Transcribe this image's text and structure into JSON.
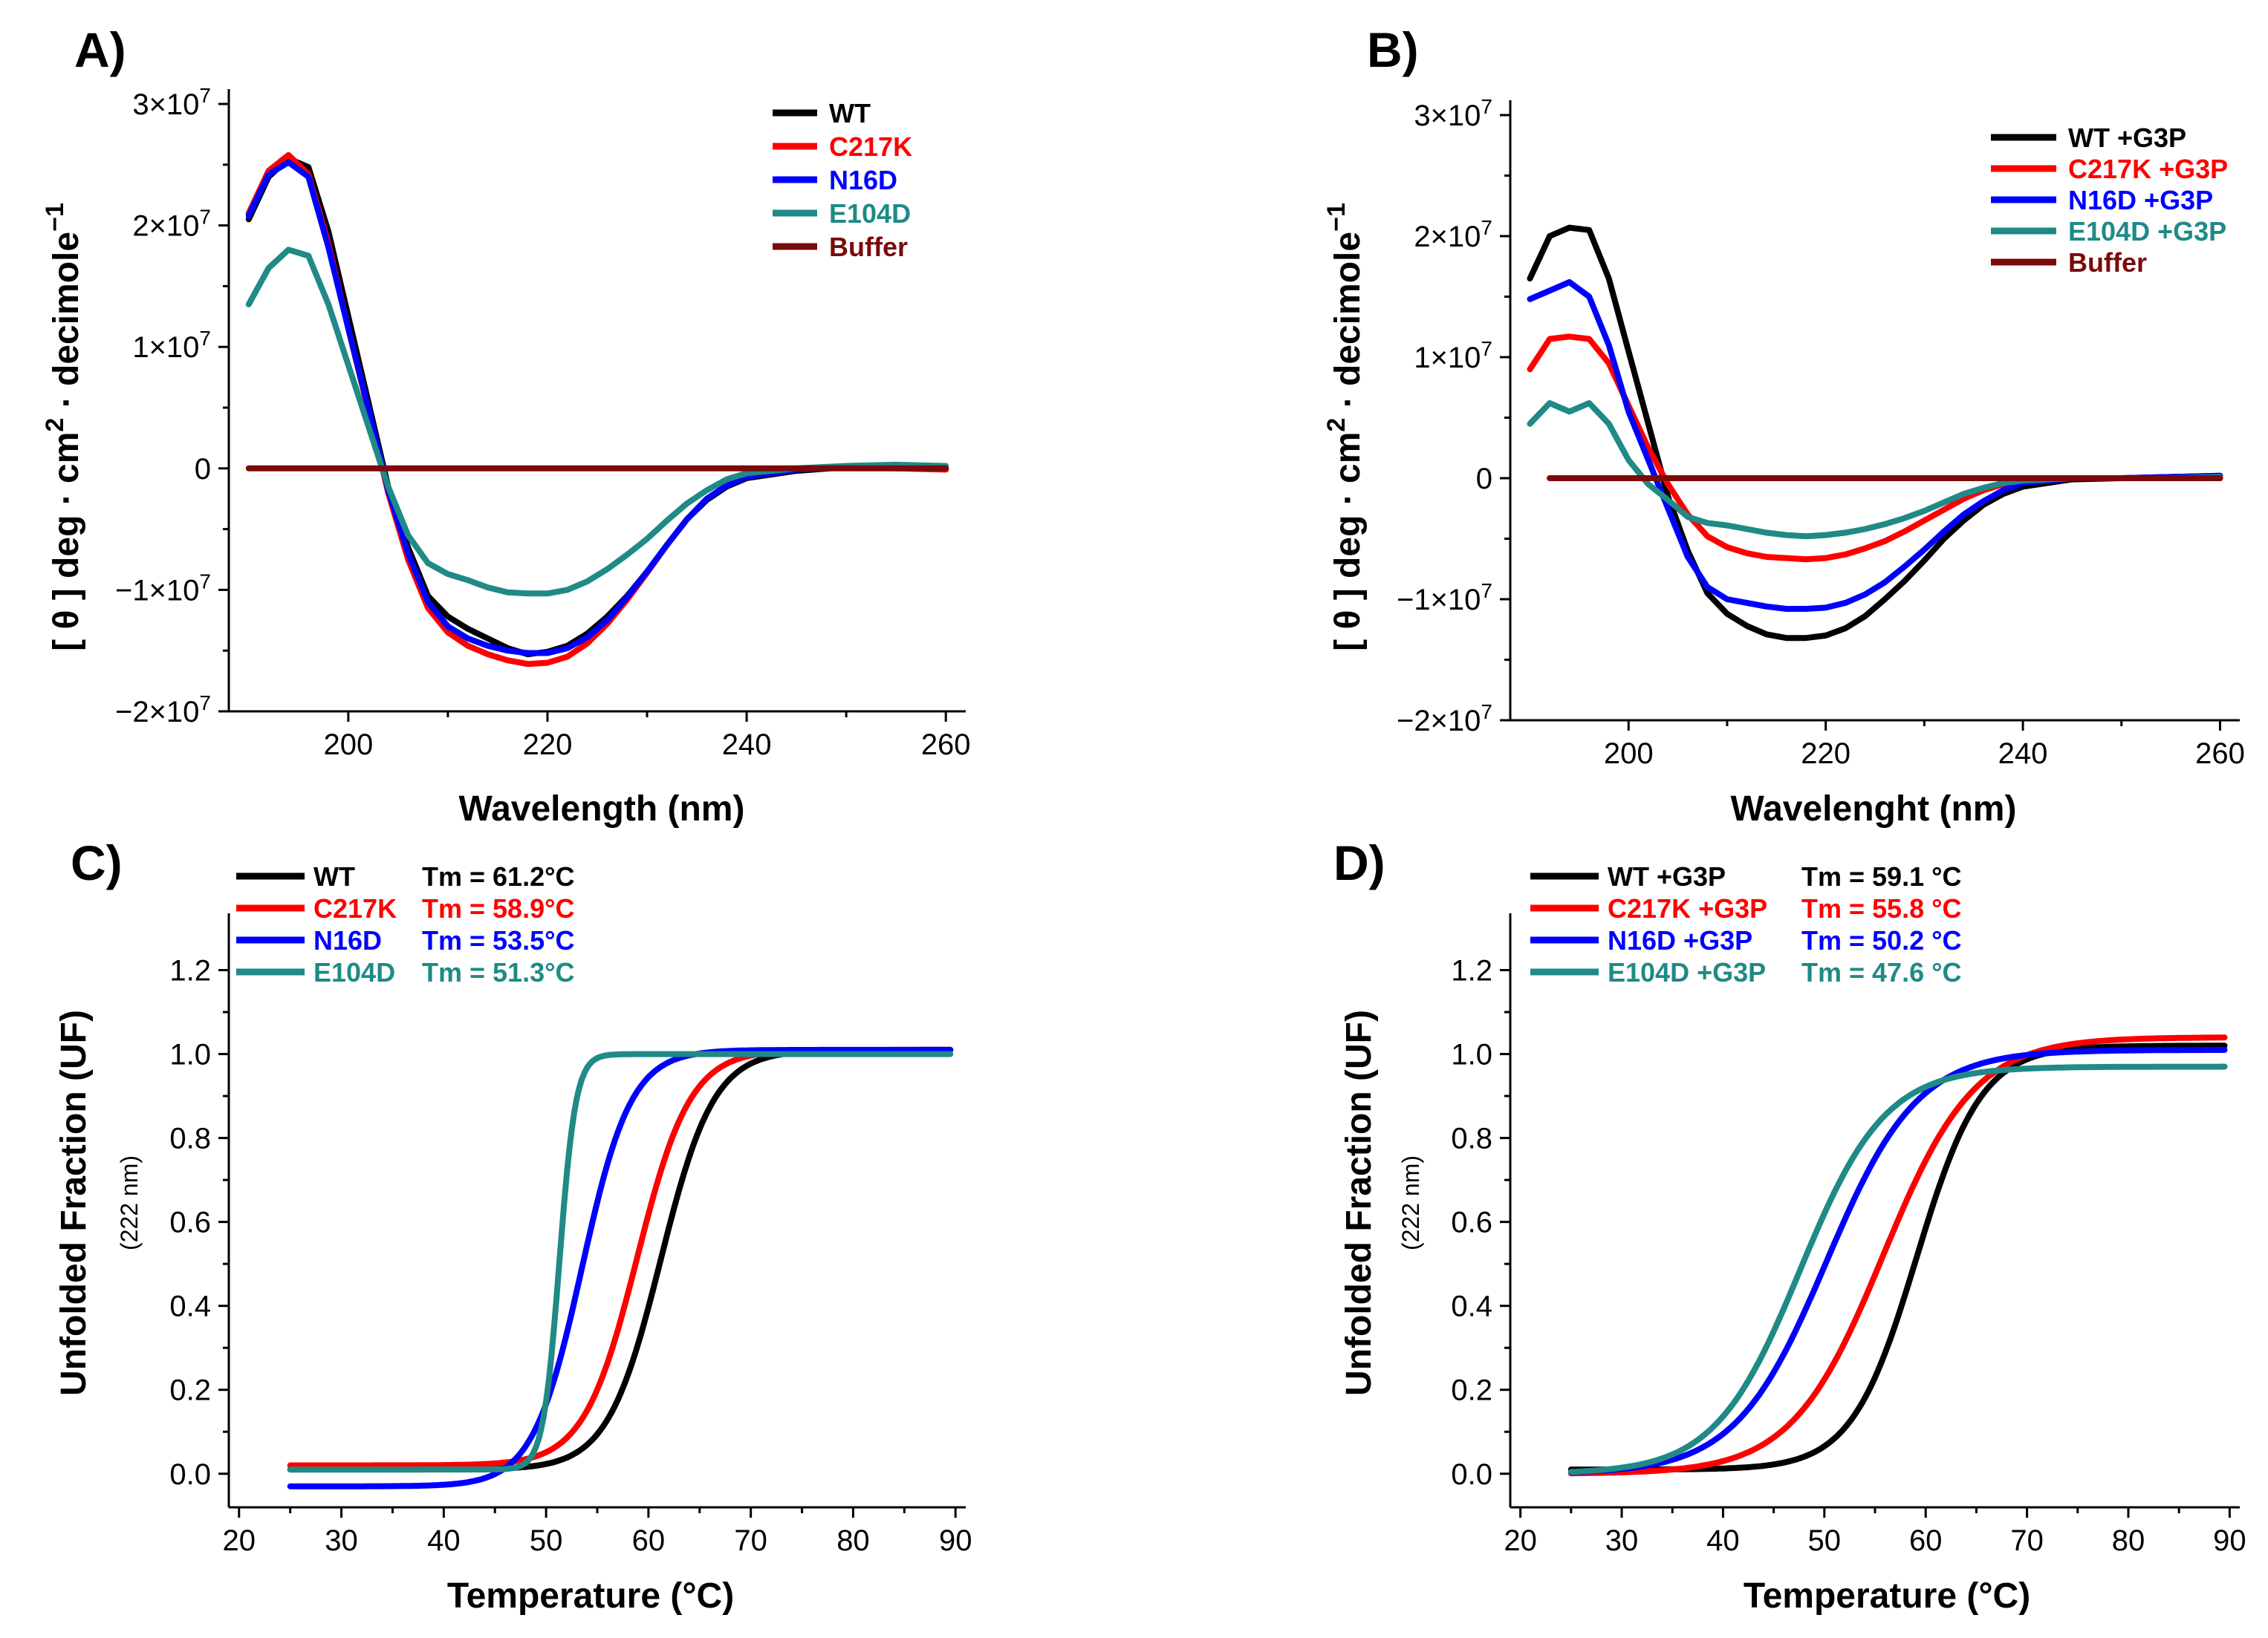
{
  "chart_data": [
    {
      "panel": "A)",
      "type": "line",
      "xlabel": "Wavelength (nm)",
      "ylabel": "[ θ ] deg · cm2 · decimole−1",
      "xlim": [
        188,
        262
      ],
      "ylim": [
        -20000000,
        30000000
      ],
      "xticks": [
        200,
        220,
        240,
        260
      ],
      "xtick_labels": [
        "200",
        "220",
        "240",
        "260"
      ],
      "yticks": [
        -20000000,
        -10000000,
        0,
        10000000,
        20000000,
        30000000
      ],
      "ytick_labels": [
        "−2×107",
        "−1×107",
        "0",
        "1×107",
        "2×107",
        "3×107"
      ],
      "legend_position": "top-right",
      "series": [
        {
          "name": "WT",
          "color": "#000000",
          "x": [
            190,
            192,
            194,
            196,
            198,
            200,
            202,
            204,
            206,
            208,
            210,
            212,
            214,
            216,
            218,
            220,
            222,
            224,
            226,
            228,
            230,
            232,
            234,
            236,
            238,
            240,
            245,
            250,
            255,
            260
          ],
          "y": [
            20500000,
            24000000,
            25500000,
            24800000,
            19500000,
            12500000,
            5500000,
            -1500000,
            -6500000,
            -10500000,
            -12200000,
            -13200000,
            -14000000,
            -14800000,
            -15300000,
            -15100000,
            -14600000,
            -13600000,
            -12200000,
            -10500000,
            -8500000,
            -6300000,
            -4200000,
            -2600000,
            -1500000,
            -800000,
            -200000,
            100000,
            200000,
            0
          ]
        },
        {
          "name": "C217K",
          "color": "#ff0000",
          "x": [
            190,
            192,
            194,
            196,
            198,
            200,
            202,
            204,
            206,
            208,
            210,
            212,
            214,
            216,
            218,
            220,
            222,
            224,
            226,
            228,
            230,
            232,
            234,
            236,
            238,
            240,
            245,
            250,
            255,
            260
          ],
          "y": [
            21000000,
            24500000,
            25800000,
            24200000,
            18500000,
            11500000,
            4800000,
            -2000000,
            -7500000,
            -11500000,
            -13500000,
            -14600000,
            -15300000,
            -15800000,
            -16100000,
            -16000000,
            -15500000,
            -14400000,
            -12800000,
            -10800000,
            -8600000,
            -6300000,
            -4200000,
            -2500000,
            -1400000,
            -700000,
            -100000,
            100000,
            0,
            -100000
          ]
        },
        {
          "name": "N16D",
          "color": "#0000ff",
          "x": [
            190,
            192,
            194,
            196,
            198,
            200,
            202,
            204,
            206,
            208,
            210,
            212,
            214,
            216,
            218,
            220,
            222,
            224,
            226,
            228,
            230,
            232,
            234,
            236,
            238,
            240,
            245,
            250,
            255,
            260
          ],
          "y": [
            20800000,
            24200000,
            25200000,
            24000000,
            18200000,
            11500000,
            5000000,
            -1800000,
            -7000000,
            -11000000,
            -13000000,
            -14000000,
            -14600000,
            -15000000,
            -15200000,
            -15200000,
            -14800000,
            -13900000,
            -12500000,
            -10600000,
            -8500000,
            -6300000,
            -4200000,
            -2500000,
            -1400000,
            -700000,
            -100000,
            100000,
            200000,
            0
          ]
        },
        {
          "name": "E104D",
          "color": "#1f8a86",
          "x": [
            190,
            192,
            194,
            196,
            198,
            200,
            202,
            204,
            206,
            208,
            210,
            212,
            214,
            216,
            218,
            220,
            222,
            224,
            226,
            228,
            230,
            232,
            234,
            236,
            238,
            240,
            245,
            250,
            255,
            260
          ],
          "y": [
            13500000,
            16500000,
            18000000,
            17500000,
            13500000,
            8500000,
            3500000,
            -1500000,
            -5500000,
            -7800000,
            -8700000,
            -9200000,
            -9800000,
            -10200000,
            -10300000,
            -10300000,
            -10000000,
            -9300000,
            -8300000,
            -7100000,
            -5800000,
            -4300000,
            -2900000,
            -1800000,
            -900000,
            -400000,
            0,
            200000,
            300000,
            200000
          ]
        },
        {
          "name": "Buffer",
          "color": "#7b0a0a",
          "x": [
            190,
            260
          ],
          "y": [
            0,
            0
          ]
        }
      ]
    },
    {
      "panel": "B)",
      "type": "line",
      "xlabel": "Wavelenght (nm)",
      "ylabel": "[ θ ] deg · cm2 · decimole−1",
      "xlim": [
        188,
        262
      ],
      "ylim": [
        -20000000,
        30000000
      ],
      "xticks": [
        200,
        220,
        240,
        260
      ],
      "xtick_labels": [
        "200",
        "220",
        "240",
        "260"
      ],
      "yticks": [
        -20000000,
        -10000000,
        0,
        10000000,
        20000000,
        30000000
      ],
      "ytick_labels": [
        "−2×107",
        "−1×107",
        "0",
        "1×107",
        "2×107",
        "3×107"
      ],
      "legend_position": "top-right",
      "series": [
        {
          "name": "WT +G3P",
          "color": "#000000",
          "x": [
            190,
            192,
            194,
            196,
            198,
            200,
            202,
            204,
            206,
            208,
            210,
            212,
            214,
            216,
            218,
            220,
            222,
            224,
            226,
            228,
            230,
            232,
            234,
            236,
            238,
            240,
            245,
            250,
            255,
            260
          ],
          "y": [
            16500000,
            20000000,
            20700000,
            20500000,
            16500000,
            10500000,
            4500000,
            -1500000,
            -6000000,
            -9500000,
            -11200000,
            -12200000,
            -12900000,
            -13200000,
            -13200000,
            -13000000,
            -12400000,
            -11400000,
            -10000000,
            -8500000,
            -6800000,
            -5000000,
            -3500000,
            -2200000,
            -1300000,
            -700000,
            -100000,
            0,
            100000,
            200000
          ]
        },
        {
          "name": "C217K +G3P",
          "color": "#ff0000",
          "x": [
            190,
            192,
            194,
            196,
            198,
            200,
            202,
            204,
            206,
            208,
            210,
            212,
            214,
            216,
            218,
            220,
            222,
            224,
            226,
            228,
            230,
            232,
            234,
            236,
            238,
            240,
            245,
            250,
            255,
            260
          ],
          "y": [
            9000000,
            11500000,
            11700000,
            11500000,
            9500000,
            6000000,
            2500000,
            -500000,
            -3000000,
            -4800000,
            -5700000,
            -6200000,
            -6500000,
            -6600000,
            -6700000,
            -6600000,
            -6300000,
            -5800000,
            -5200000,
            -4400000,
            -3500000,
            -2600000,
            -1700000,
            -1000000,
            -500000,
            -200000,
            0,
            0,
            100000,
            0
          ]
        },
        {
          "name": "N16D +G3P",
          "color": "#0000ff",
          "x": [
            190,
            192,
            194,
            196,
            198,
            200,
            202,
            204,
            206,
            208,
            210,
            212,
            214,
            216,
            218,
            220,
            222,
            224,
            226,
            228,
            230,
            232,
            234,
            236,
            238,
            240,
            245,
            250,
            255,
            260
          ],
          "y": [
            14800000,
            15500000,
            16200000,
            15000000,
            11000000,
            5500000,
            1500000,
            -2500000,
            -6500000,
            -9000000,
            -10000000,
            -10300000,
            -10600000,
            -10800000,
            -10800000,
            -10700000,
            -10300000,
            -9600000,
            -8600000,
            -7300000,
            -5900000,
            -4400000,
            -3000000,
            -1900000,
            -1000000,
            -400000,
            0,
            0,
            100000,
            200000
          ]
        },
        {
          "name": "E104D +G3P",
          "color": "#1f8a86",
          "x": [
            190,
            192,
            194,
            196,
            198,
            200,
            202,
            204,
            206,
            208,
            210,
            212,
            214,
            216,
            218,
            220,
            222,
            224,
            226,
            228,
            230,
            232,
            234,
            236,
            238,
            240,
            245,
            250,
            255,
            260
          ],
          "y": [
            4500000,
            6200000,
            5500000,
            6200000,
            4500000,
            1500000,
            -500000,
            -1800000,
            -3200000,
            -3700000,
            -3900000,
            -4200000,
            -4500000,
            -4700000,
            -4800000,
            -4700000,
            -4500000,
            -4200000,
            -3800000,
            -3300000,
            -2700000,
            -2000000,
            -1300000,
            -800000,
            -400000,
            -200000,
            0,
            0,
            0,
            100000
          ]
        },
        {
          "name": "Buffer",
          "color": "#7b0a0a",
          "x": [
            192,
            260
          ],
          "y": [
            0,
            0
          ]
        }
      ]
    },
    {
      "panel": "C)",
      "type": "line",
      "xlabel": "Temperature (°C)",
      "ylabel": "Unfolded Fraction (UF)",
      "ylabel_sub": "(222 nm)",
      "xlim": [
        19,
        91
      ],
      "ylim": [
        -0.08,
        1.3
      ],
      "xticks": [
        20,
        30,
        40,
        50,
        60,
        70,
        80,
        90
      ],
      "xtick_labels": [
        "20",
        "30",
        "40",
        "50",
        "60",
        "70",
        "80",
        "90"
      ],
      "yticks": [
        0,
        0.2,
        0.4,
        0.6,
        0.8,
        1.0,
        1.2
      ],
      "ytick_labels": [
        "0.0",
        "0.2",
        "0.4",
        "0.6",
        "0.8",
        "1.0",
        "1.2"
      ],
      "legend_position": "top-left",
      "series": [
        {
          "name": "WT",
          "label": "WT",
          "tm_label": "Tm = 61.2°C",
          "color": "#000000",
          "x_range": [
            25,
            89.5
          ],
          "tm": 61.2,
          "slope": 2.6,
          "y_low": 0.01,
          "y_high": 1.01
        },
        {
          "name": "C217K",
          "label": "C217K",
          "tm_label": "Tm = 58.9°C",
          "color": "#ff0000",
          "x_range": [
            25,
            89.5
          ],
          "tm": 58.9,
          "slope": 2.6,
          "y_low": 0.02,
          "y_high": 1.01
        },
        {
          "name": "N16D",
          "label": "N16D",
          "tm_label": "Tm = 53.5°C",
          "color": "#0000ff",
          "x_range": [
            25,
            89.5
          ],
          "tm": 53.5,
          "slope": 2.4,
          "y_low": -0.03,
          "y_high": 1.01
        },
        {
          "name": "E104D",
          "label": "E104D",
          "tm_label": "Tm = 51.3°C",
          "color": "#1f8a86",
          "x_range": [
            25,
            89.5
          ],
          "tm": 51.3,
          "slope": 0.8,
          "y_low": 0.01,
          "y_high": 1.0
        }
      ]
    },
    {
      "panel": "D)",
      "type": "line",
      "xlabel": "Temperature (°C)",
      "ylabel": "Unfolded Fraction (UF)",
      "ylabel_sub": "(222 nm)",
      "xlim": [
        19,
        91
      ],
      "ylim": [
        -0.08,
        1.3
      ],
      "xticks": [
        20,
        30,
        40,
        50,
        60,
        70,
        80,
        90
      ],
      "xtick_labels": [
        "20",
        "30",
        "40",
        "50",
        "60",
        "70",
        "80",
        "90"
      ],
      "yticks": [
        0,
        0.2,
        0.4,
        0.6,
        0.8,
        1.0,
        1.2
      ],
      "ytick_labels": [
        "0.0",
        "0.2",
        "0.4",
        "0.6",
        "0.8",
        "1.0",
        "1.2"
      ],
      "legend_position": "top-left",
      "series": [
        {
          "name": "WT +G3P",
          "label": "WT +G3P",
          "tm_label": "Tm = 59.1 °C",
          "color": "#000000",
          "x_range": [
            25,
            89.5
          ],
          "tm": 59.1,
          "slope": 3.2,
          "y_low": 0.01,
          "y_high": 1.02
        },
        {
          "name": "C217K +G3P",
          "label": "C217K +G3P",
          "tm_label": "Tm = 55.8 °C",
          "color": "#ff0000",
          "x_range": [
            25,
            89.5
          ],
          "tm": 55.8,
          "slope": 4.5,
          "y_low": 0.0,
          "y_high": 1.04
        },
        {
          "name": "N16D +G3P",
          "label": "N16D +G3P",
          "tm_label": "Tm = 50.2 °C",
          "color": "#0000ff",
          "x_range": [
            25,
            89.5
          ],
          "tm": 50.2,
          "slope": 4.5,
          "y_low": 0.0,
          "y_high": 1.01
        },
        {
          "name": "E104D +G3P",
          "label": "E104D +G3P",
          "tm_label": "Tm = 47.6 °C",
          "color": "#1f8a86",
          "x_range": [
            25,
            89.5
          ],
          "tm": 47.6,
          "slope": 4.2,
          "y_low": 0.0,
          "y_high": 0.97
        }
      ]
    }
  ]
}
